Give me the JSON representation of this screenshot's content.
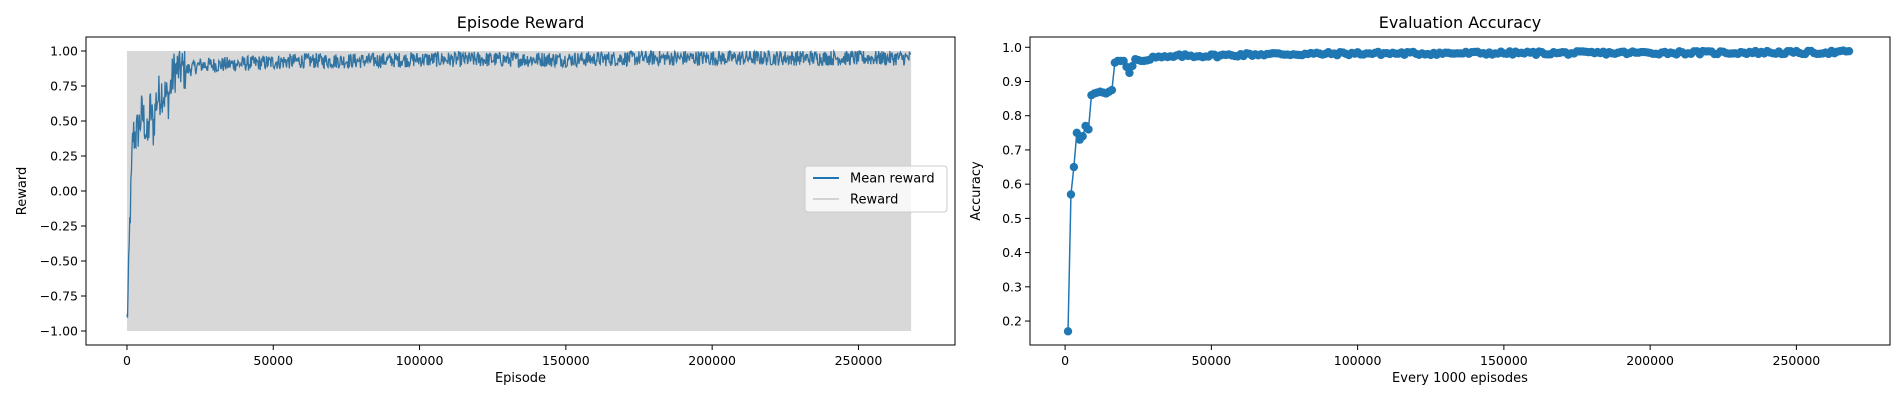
{
  "chart_data": [
    {
      "type": "line",
      "title": "Episode Reward",
      "xlabel": "Episode",
      "ylabel": "Reward",
      "xlim": [
        -14000,
        283000
      ],
      "ylim": [
        -1.1,
        1.1
      ],
      "xticks": [
        0,
        50000,
        100000,
        150000,
        200000,
        250000
      ],
      "xtick_labels": [
        "0",
        "50000",
        "100000",
        "150000",
        "200000",
        "250000"
      ],
      "yticks": [
        -1.0,
        -0.75,
        -0.5,
        -0.25,
        0.0,
        0.25,
        0.5,
        0.75,
        1.0
      ],
      "ytick_labels": [
        "−1.00",
        "−0.75",
        "−0.50",
        "−0.25",
        "0.00",
        "0.25",
        "0.50",
        "0.75",
        "1.00"
      ],
      "grid": false,
      "legend_position": "center-right",
      "colors": {
        "mean": "#3274a1",
        "reward": "#d3d3d3",
        "reward_fill": "#d8d8d8"
      },
      "series": [
        {
          "name": "Mean reward",
          "style": "line",
          "x": [
            0,
            500,
            1000,
            1500,
            2000,
            3000,
            4000,
            5000,
            6000,
            7000,
            8000,
            9000,
            10000,
            12000,
            14000,
            16000,
            18000,
            20000,
            25000,
            30000,
            40000,
            50000,
            60000,
            80000,
            100000,
            120000,
            150000,
            180000,
            200000,
            220000,
            250000,
            268000
          ],
          "values": [
            -0.93,
            -0.7,
            -0.2,
            0.05,
            0.4,
            0.4,
            0.45,
            0.55,
            0.5,
            0.35,
            0.6,
            0.45,
            0.65,
            0.72,
            0.65,
            0.85,
            0.88,
            0.86,
            0.9,
            0.9,
            0.91,
            0.92,
            0.93,
            0.93,
            0.94,
            0.94,
            0.94,
            0.95,
            0.95,
            0.95,
            0.95,
            0.95
          ]
        },
        {
          "name": "Reward",
          "style": "band",
          "x": [
            0,
            268000
          ],
          "range": [
            -1.0,
            1.0
          ]
        }
      ]
    },
    {
      "type": "line",
      "title": "Evaluation Accuracy",
      "xlabel": "Every 1000 episodes",
      "ylabel": "Accuracy",
      "xlim": [
        -12000,
        282000
      ],
      "ylim": [
        0.13,
        1.03
      ],
      "xticks": [
        0,
        50000,
        100000,
        150000,
        200000,
        250000
      ],
      "xtick_labels": [
        "0",
        "50000",
        "100000",
        "150000",
        "200000",
        "250000"
      ],
      "yticks": [
        0.2,
        0.3,
        0.4,
        0.5,
        0.6,
        0.7,
        0.8,
        0.9,
        1.0
      ],
      "ytick_labels": [
        "0.2",
        "0.3",
        "0.4",
        "0.5",
        "0.6",
        "0.7",
        "0.8",
        "0.9",
        "1.0"
      ],
      "grid": false,
      "colors": {
        "line": "#1f77b4"
      },
      "series": [
        {
          "style": "line-markers",
          "x": [
            1000,
            2000,
            3000,
            4000,
            5000,
            6000,
            7000,
            8000,
            9000,
            10000,
            12000,
            14000,
            16000,
            17000,
            18000,
            20000,
            22000,
            24000,
            26000,
            30000,
            35000,
            40000,
            50000,
            60000,
            70000,
            80000,
            100000,
            120000,
            150000,
            180000,
            200000,
            220000,
            240000,
            250000,
            260000,
            268000
          ],
          "values": [
            0.17,
            0.57,
            0.65,
            0.75,
            0.73,
            0.74,
            0.77,
            0.76,
            0.86,
            0.865,
            0.87,
            0.865,
            0.875,
            0.955,
            0.96,
            0.96,
            0.925,
            0.965,
            0.96,
            0.97,
            0.97,
            0.975,
            0.975,
            0.978,
            0.98,
            0.98,
            0.982,
            0.982,
            0.983,
            0.983,
            0.984,
            0.984,
            0.985,
            0.984,
            0.985,
            0.986
          ]
        }
      ]
    }
  ]
}
